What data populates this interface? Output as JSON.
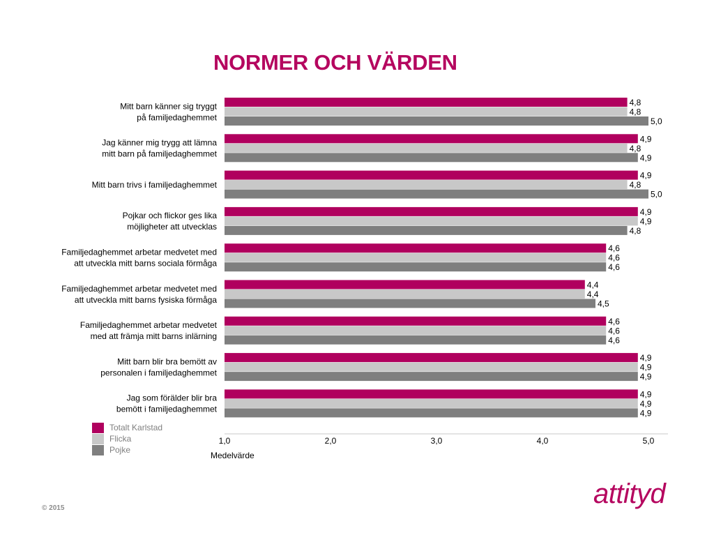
{
  "title": "NORMER OCH VÄRDEN",
  "brand": "attityd",
  "copyright": "© 2015",
  "colors": {
    "title": "#b5065f",
    "totalt": "#b0005e",
    "flicka": "#c8c8c8",
    "pojke": "#7f7f7f",
    "axis_text": "#000000",
    "label_text": "#000000"
  },
  "chart_data": {
    "type": "bar",
    "orientation": "horizontal",
    "title": "NORMER OCH VÄRDEN",
    "xlabel": "Medelvärde",
    "ylabel": "",
    "xlim": [
      1.0,
      5.0
    ],
    "x_ticks": [
      "1,0",
      "2,0",
      "3,0",
      "4,0",
      "5,0"
    ],
    "grid": false,
    "legend_position": "bottom-left",
    "categories": [
      [
        "Mitt barn känner sig tryggt",
        "på familjedaghemmet"
      ],
      [
        "Jag känner mig trygg att lämna",
        "mitt barn på familjedaghemmet"
      ],
      [
        "Mitt barn trivs i familjedaghemmet"
      ],
      [
        "Pojkar och flickor ges lika",
        "möjligheter att utvecklas"
      ],
      [
        "Familjedaghemmet arbetar medvetet med",
        "att utveckla mitt barns sociala förmåga"
      ],
      [
        "Familjedaghemmet arbetar medvetet med",
        "att utveckla mitt barns fysiska förmåga"
      ],
      [
        "Familjedaghemmet arbetar medvetet",
        "med att främja mitt barns inlärning"
      ],
      [
        "Mitt barn blir bra bemött av",
        "personalen i familjedaghemmet"
      ],
      [
        "Jag som förälder blir bra",
        "bemött i familjedaghemmet"
      ]
    ],
    "series": [
      {
        "name": "Totalt Karlstad",
        "values": [
          4.8,
          4.9,
          4.9,
          4.9,
          4.6,
          4.4,
          4.6,
          4.9,
          4.9
        ],
        "labels": [
          "4,8",
          "4,9",
          "4,9",
          "4,9",
          "4,6",
          "4,4",
          "4,6",
          "4,9",
          "4,9"
        ]
      },
      {
        "name": "Flicka",
        "values": [
          4.8,
          4.8,
          4.8,
          4.9,
          4.6,
          4.4,
          4.6,
          4.9,
          4.9
        ],
        "labels": [
          "4,8",
          "4,8",
          "4,8",
          "4,9",
          "4,6",
          "4,4",
          "4,6",
          "4,9",
          "4,9"
        ]
      },
      {
        "name": "Pojke",
        "values": [
          5.0,
          4.9,
          5.0,
          4.8,
          4.6,
          4.5,
          4.6,
          4.9,
          4.9
        ],
        "labels": [
          "5,0",
          "4,9",
          "5,0",
          "4,8",
          "4,6",
          "4,5",
          "4,6",
          "4,9",
          "4,9"
        ]
      }
    ]
  }
}
